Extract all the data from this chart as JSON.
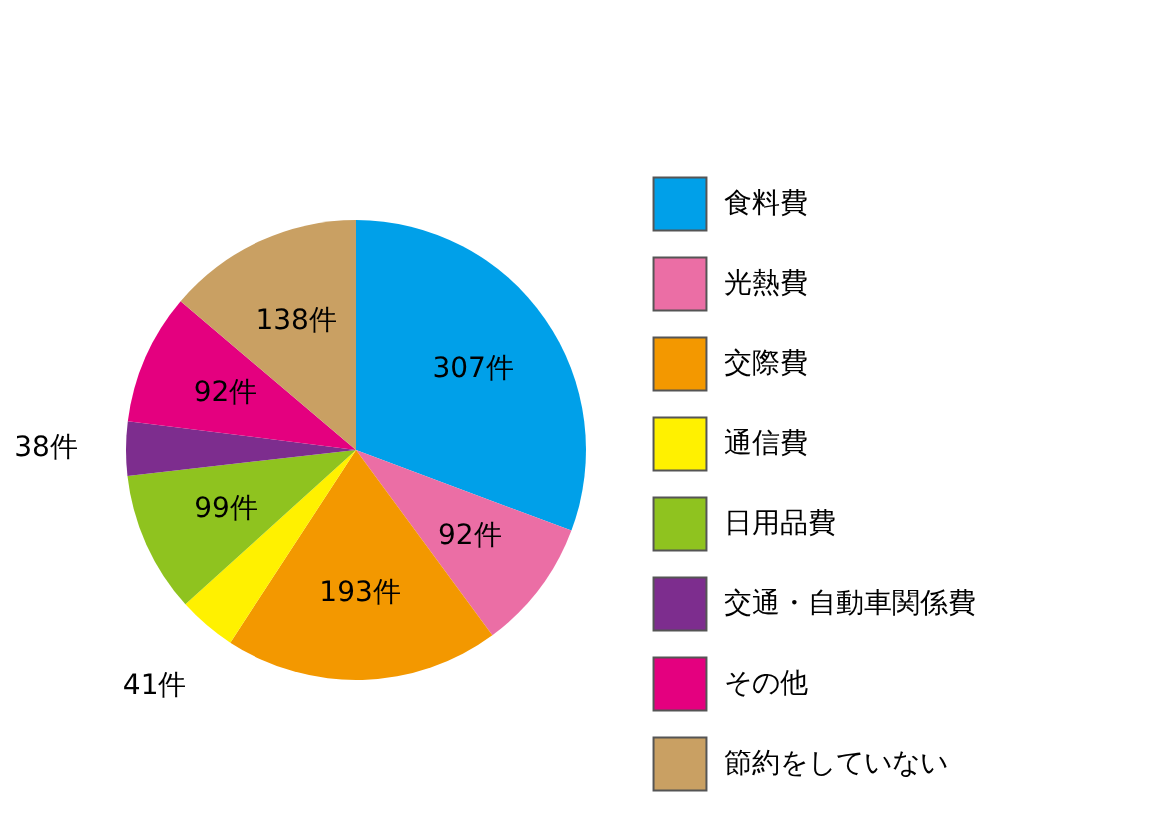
{
  "chart_data": {
    "type": "pie",
    "categories": [
      "食料費",
      "光熱費",
      "交際費",
      "通信費",
      "日用品費",
      "交通・自動車関係費",
      "その他",
      "節約をしていない"
    ],
    "values": [
      307,
      92,
      193,
      41,
      99,
      38,
      92,
      138
    ],
    "value_labels": [
      "307件",
      "92件",
      "193件",
      "41件",
      "99件",
      "38件",
      "92件",
      "138件"
    ],
    "colors": [
      "#00a0e9",
      "#eb6ea5",
      "#f39800",
      "#fff100",
      "#8fc31f",
      "#7d2d8e",
      "#e4007f",
      "#c9a063"
    ],
    "legend": "right"
  }
}
